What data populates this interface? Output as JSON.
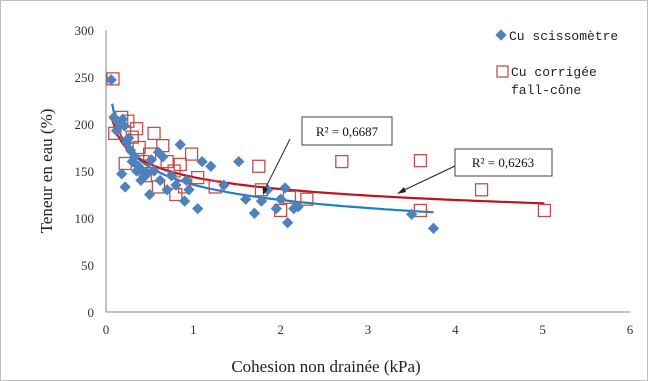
{
  "chart_data": {
    "type": "scatter",
    "xlabel": "Cohesion non drainée (kPa)",
    "ylabel": "Teneur  en eau (%)",
    "xlim": [
      0,
      6
    ],
    "ylim": [
      0,
      300
    ],
    "x_ticks": [
      "0",
      "1",
      "2",
      "3",
      "4",
      "5",
      "6"
    ],
    "y_ticks": [
      "0",
      "50",
      "100",
      "150",
      "200",
      "250",
      "300"
    ],
    "grid": false,
    "legend_position": "top-right",
    "series": [
      {
        "name": "Cu scissomètre",
        "marker": "diamond",
        "color": "#4f81bd",
        "trend_color": "#1f80c8",
        "r_squared_label": "R² = 0,6687",
        "points": [
          [
            0.06,
            247
          ],
          [
            0.09,
            207
          ],
          [
            0.12,
            193
          ],
          [
            0.15,
            200
          ],
          [
            0.19,
            205
          ],
          [
            0.21,
            198
          ],
          [
            0.18,
            147
          ],
          [
            0.22,
            133
          ],
          [
            0.24,
            180
          ],
          [
            0.26,
            185
          ],
          [
            0.28,
            172
          ],
          [
            0.3,
            160
          ],
          [
            0.33,
            165
          ],
          [
            0.35,
            150
          ],
          [
            0.37,
            155
          ],
          [
            0.4,
            140
          ],
          [
            0.42,
            150
          ],
          [
            0.45,
            145
          ],
          [
            0.47,
            148
          ],
          [
            0.5,
            125
          ],
          [
            0.52,
            162
          ],
          [
            0.55,
            150
          ],
          [
            0.6,
            170
          ],
          [
            0.62,
            140
          ],
          [
            0.65,
            165
          ],
          [
            0.7,
            130
          ],
          [
            0.75,
            145
          ],
          [
            0.8,
            135
          ],
          [
            0.85,
            178
          ],
          [
            0.9,
            118
          ],
          [
            0.92,
            140
          ],
          [
            0.95,
            130
          ],
          [
            1.05,
            110
          ],
          [
            1.1,
            160
          ],
          [
            1.2,
            155
          ],
          [
            1.35,
            135
          ],
          [
            1.52,
            160
          ],
          [
            1.6,
            120
          ],
          [
            1.7,
            105
          ],
          [
            1.78,
            118
          ],
          [
            1.85,
            130
          ],
          [
            1.95,
            110
          ],
          [
            2.0,
            120
          ],
          [
            2.05,
            132
          ],
          [
            2.08,
            95
          ],
          [
            2.15,
            110
          ],
          [
            2.2,
            112
          ],
          [
            3.5,
            104
          ],
          [
            3.75,
            89
          ]
        ]
      },
      {
        "name": "Cu corrigée fall-cône",
        "legend_lines": [
          "Cu corrigée",
          "fall-cône"
        ],
        "marker": "square-open",
        "color": "#c0504d",
        "trend_color": "#c0141a",
        "r_squared_label": "R² = 0,6263",
        "points": [
          [
            0.08,
            248
          ],
          [
            0.1,
            190
          ],
          [
            0.18,
            207
          ],
          [
            0.22,
            158
          ],
          [
            0.25,
            203
          ],
          [
            0.3,
            186
          ],
          [
            0.35,
            195
          ],
          [
            0.38,
            175
          ],
          [
            0.42,
            160
          ],
          [
            0.45,
            145
          ],
          [
            0.5,
            168
          ],
          [
            0.55,
            190
          ],
          [
            0.6,
            133
          ],
          [
            0.65,
            177
          ],
          [
            0.7,
            160
          ],
          [
            0.78,
            150
          ],
          [
            0.8,
            125
          ],
          [
            0.85,
            157
          ],
          [
            0.9,
            133
          ],
          [
            0.98,
            168
          ],
          [
            1.05,
            143
          ],
          [
            1.25,
            133
          ],
          [
            1.75,
            155
          ],
          [
            1.78,
            130
          ],
          [
            2.0,
            108
          ],
          [
            2.1,
            122
          ],
          [
            2.3,
            120
          ],
          [
            2.7,
            160
          ],
          [
            3.6,
            161
          ],
          [
            3.6,
            108
          ],
          [
            4.3,
            130
          ],
          [
            5.02,
            108
          ]
        ]
      }
    ],
    "trendlines": [
      {
        "series": "Cu scissomètre",
        "type": "power",
        "a": 135.5,
        "b": -0.185,
        "x_range": [
          0.07,
          3.75
        ]
      },
      {
        "series": "Cu corrigée fall-cône",
        "type": "power",
        "a": 143.5,
        "b": -0.134,
        "x_range": [
          0.07,
          5.02
        ]
      }
    ]
  }
}
